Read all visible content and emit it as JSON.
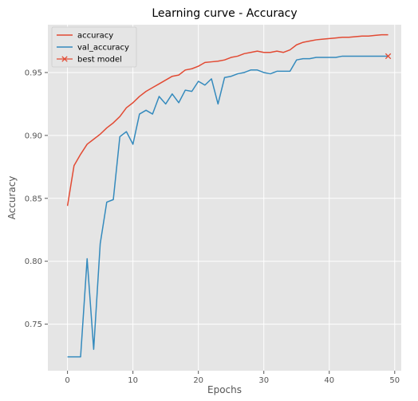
{
  "chart_data": {
    "type": "line",
    "title": "Learning curve - Accuracy",
    "xlabel": "Epochs",
    "ylabel": "Accuracy",
    "xlim": [
      -3,
      51
    ],
    "ylim": [
      0.713,
      0.988
    ],
    "xticks": [
      0,
      10,
      20,
      30,
      40,
      50
    ],
    "yticks": [
      0.75,
      0.8,
      0.85,
      0.9,
      0.95
    ],
    "ytick_labels": [
      "0.75",
      "0.80",
      "0.85",
      "0.90",
      "0.95"
    ],
    "grid": true,
    "legend_position": "top-left",
    "x": [
      0,
      1,
      2,
      3,
      4,
      5,
      6,
      7,
      8,
      9,
      10,
      11,
      12,
      13,
      14,
      15,
      16,
      17,
      18,
      19,
      20,
      21,
      22,
      23,
      24,
      25,
      26,
      27,
      28,
      29,
      30,
      31,
      32,
      33,
      34,
      35,
      36,
      37,
      38,
      39,
      40,
      41,
      42,
      43,
      44,
      45,
      46,
      47,
      48,
      49
    ],
    "series": [
      {
        "name": "accuracy",
        "color": "#E24A33",
        "values": [
          0.844,
          0.876,
          0.885,
          0.893,
          0.897,
          0.901,
          0.906,
          0.91,
          0.915,
          0.922,
          0.926,
          0.931,
          0.935,
          0.938,
          0.941,
          0.944,
          0.947,
          0.948,
          0.952,
          0.953,
          0.955,
          0.958,
          0.9585,
          0.959,
          0.96,
          0.962,
          0.963,
          0.965,
          0.966,
          0.967,
          0.966,
          0.966,
          0.967,
          0.966,
          0.968,
          0.972,
          0.974,
          0.975,
          0.976,
          0.9765,
          0.977,
          0.9775,
          0.978,
          0.978,
          0.9785,
          0.979,
          0.979,
          0.9795,
          0.98,
          0.98
        ]
      },
      {
        "name": "val_accuracy",
        "color": "#348ABD",
        "values": [
          0.724,
          0.724,
          0.724,
          0.802,
          0.73,
          0.814,
          0.847,
          0.849,
          0.899,
          0.903,
          0.893,
          0.917,
          0.92,
          0.917,
          0.931,
          0.925,
          0.933,
          0.926,
          0.936,
          0.935,
          0.943,
          0.94,
          0.945,
          0.925,
          0.946,
          0.947,
          0.949,
          0.95,
          0.952,
          0.952,
          0.95,
          0.949,
          0.951,
          0.951,
          0.951,
          0.96,
          0.961,
          0.961,
          0.962,
          0.962,
          0.962,
          0.962,
          0.963,
          0.963,
          0.963,
          0.963,
          0.963,
          0.963,
          0.963,
          0.963
        ]
      }
    ],
    "markers": [
      {
        "name": "best model",
        "color": "#E24A33",
        "symbol": "x",
        "x": 49,
        "y": 0.963
      }
    ]
  }
}
